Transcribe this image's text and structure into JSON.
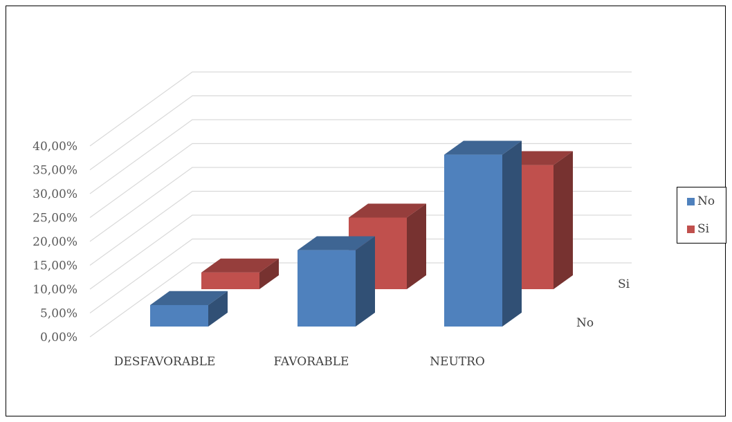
{
  "chart_data": {
    "type": "bar",
    "style": "3d-clustered-columns",
    "categories": [
      "DESFAVORABLE",
      "FAVORABLE",
      "NEUTRO"
    ],
    "series": [
      {
        "name": "No",
        "color": "#4F81BD",
        "values": [
          4.5,
          16.0,
          36.0
        ]
      },
      {
        "name": "Si",
        "color": "#C0504D",
        "values": [
          3.5,
          15.0,
          26.0
        ]
      }
    ],
    "depth_labels": [
      "Si",
      "No"
    ],
    "y_ticks": [
      "0,00%",
      "5,00%",
      "10,00%",
      "15,00%",
      "20,00%",
      "25,00%",
      "30,00%",
      "35,00%",
      "40,00%"
    ],
    "ylim": [
      0,
      40
    ],
    "grid": true,
    "legend_position": "right"
  }
}
